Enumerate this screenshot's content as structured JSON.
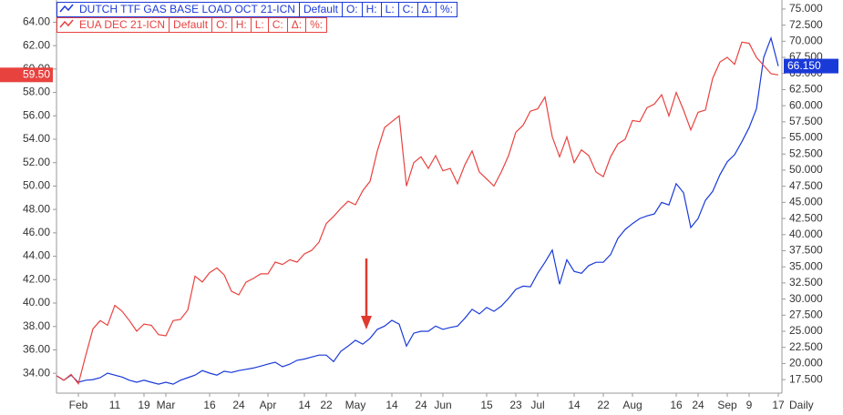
{
  "chart_data": {
    "type": "line",
    "categories": [
      null,
      null,
      null,
      "Feb",
      null,
      null,
      null,
      null,
      "11",
      null,
      null,
      null,
      "19",
      null,
      null,
      "Mar",
      null,
      null,
      null,
      null,
      null,
      "16",
      null,
      null,
      null,
      "24",
      null,
      null,
      null,
      "Apr",
      null,
      null,
      null,
      null,
      "14",
      null,
      null,
      "22",
      null,
      null,
      null,
      "May",
      null,
      null,
      null,
      null,
      "14",
      null,
      null,
      null,
      "24",
      null,
      null,
      "Jun",
      null,
      null,
      null,
      null,
      null,
      "15",
      null,
      null,
      null,
      "23",
      null,
      null,
      "Jul",
      null,
      null,
      null,
      null,
      "14",
      null,
      null,
      null,
      "22",
      null,
      null,
      null,
      "Aug",
      null,
      null,
      null,
      null,
      null,
      "16",
      null,
      null,
      "24",
      null,
      null,
      null,
      "Sep",
      null,
      null,
      "9",
      null,
      null,
      null,
      "17"
    ],
    "x_interval": "Daily",
    "legend_fields": [
      "Default",
      "O:",
      "H:",
      "L:",
      "C:",
      "Δ:",
      "%:"
    ],
    "series": [
      {
        "name": "DUTCH TTF GAS BASE LOAD OCT 21-ICN",
        "color": "#1a3ad8",
        "axis": "y2",
        "values": [
          18.1,
          17.4,
          18.2,
          17.1,
          17.4,
          17.5,
          17.8,
          18.5,
          18.2,
          17.9,
          17.4,
          17.1,
          17.4,
          17.1,
          16.8,
          17.1,
          16.8,
          17.4,
          17.8,
          18.2,
          18.9,
          18.5,
          18.2,
          18.8,
          18.6,
          18.9,
          19.1,
          19.3,
          19.6,
          19.9,
          20.2,
          19.5,
          19.9,
          20.5,
          20.7,
          21.0,
          21.3,
          21.3,
          20.3,
          21.9,
          22.7,
          23.6,
          23.0,
          23.9,
          25.3,
          25.8,
          26.7,
          26.1,
          22.7,
          24.7,
          25.0,
          25.0,
          25.8,
          25.3,
          25.6,
          25.8,
          27.0,
          28.4,
          27.7,
          28.7,
          28.1,
          28.9,
          30.1,
          31.5,
          32.0,
          31.9,
          34.0,
          35.7,
          37.6,
          32.3,
          36.1,
          34.3,
          34.0,
          35.2,
          35.7,
          35.7,
          36.9,
          39.4,
          40.8,
          41.7,
          42.5,
          42.9,
          43.2,
          45.0,
          44.6,
          47.9,
          46.5,
          41.1,
          42.5,
          45.3,
          46.7,
          49.3,
          51.3,
          52.4,
          54.4,
          56.6,
          59.5,
          67.5,
          70.5,
          66.15
        ],
        "last_value_label": "66.150"
      },
      {
        "name": "EUA DEC 21-ICN",
        "color": "#e8423f",
        "axis": "y",
        "values": [
          33.8,
          33.4,
          33.9,
          33.1,
          35.5,
          37.8,
          38.5,
          38.1,
          39.8,
          39.3,
          38.5,
          37.6,
          38.2,
          38.1,
          37.3,
          37.2,
          38.5,
          38.6,
          39.4,
          42.3,
          41.8,
          42.6,
          43.0,
          42.4,
          41.0,
          40.7,
          41.8,
          42.1,
          42.5,
          42.5,
          43.5,
          43.3,
          43.7,
          43.5,
          44.2,
          44.5,
          45.2,
          46.8,
          47.4,
          48.1,
          48.7,
          48.4,
          49.6,
          50.4,
          53.0,
          55.0,
          55.5,
          56.0,
          50.0,
          52.0,
          52.5,
          51.5,
          52.6,
          51.3,
          51.5,
          50.2,
          51.8,
          53.0,
          51.2,
          50.6,
          50.0,
          51.2,
          52.6,
          54.6,
          55.2,
          56.4,
          56.6,
          57.6,
          54.2,
          52.5,
          54.2,
          52.0,
          53.1,
          52.6,
          51.2,
          50.8,
          52.5,
          53.6,
          54.0,
          55.6,
          55.5,
          56.7,
          57.0,
          57.8,
          56.0,
          58.0,
          56.5,
          54.8,
          56.3,
          56.5,
          59.2,
          60.6,
          61.0,
          60.4,
          62.3,
          62.2,
          61.0,
          60.3,
          59.6,
          59.5
        ],
        "last_value_label": "59.50"
      }
    ],
    "ylim": [
      32.3,
      65.9
    ],
    "yticks": [
      {
        "value": 34,
        "label": "34.00"
      },
      {
        "value": 36,
        "label": "36.00"
      },
      {
        "value": 38,
        "label": "38.00"
      },
      {
        "value": 40,
        "label": "40.00"
      },
      {
        "value": 42,
        "label": "42.00"
      },
      {
        "value": 44,
        "label": "44.00"
      },
      {
        "value": 46,
        "label": "46.00"
      },
      {
        "value": 48,
        "label": "48.00"
      },
      {
        "value": 50,
        "label": "50.00"
      },
      {
        "value": 52,
        "label": "52.00"
      },
      {
        "value": 54,
        "label": "54.00"
      },
      {
        "value": 56,
        "label": "56.00"
      },
      {
        "value": 58,
        "label": "58.00"
      },
      {
        "value": 60,
        "label": "60.00"
      },
      {
        "value": 62,
        "label": "62.00"
      },
      {
        "value": 64,
        "label": "64.00"
      }
    ],
    "y2lim": [
      15.4,
      76.4
    ],
    "y2ticks": [
      {
        "value": 17.5,
        "label": "17.500"
      },
      {
        "value": 20,
        "label": "20.000"
      },
      {
        "value": 22.5,
        "label": "22.500"
      },
      {
        "value": 25,
        "label": "25.000"
      },
      {
        "value": 27.5,
        "label": "27.500"
      },
      {
        "value": 30,
        "label": "30.000"
      },
      {
        "value": 32.5,
        "label": "32.500"
      },
      {
        "value": 35,
        "label": "35.000"
      },
      {
        "value": 37.5,
        "label": "37.500"
      },
      {
        "value": 40,
        "label": "40.000"
      },
      {
        "value": 42.5,
        "label": "42.500"
      },
      {
        "value": 45,
        "label": "45.000"
      },
      {
        "value": 47.5,
        "label": "47.500"
      },
      {
        "value": 50,
        "label": "50.000"
      },
      {
        "value": 52.5,
        "label": "52.500"
      },
      {
        "value": 55,
        "label": "55.000"
      },
      {
        "value": 57.5,
        "label": "57.500"
      },
      {
        "value": 60,
        "label": "60.000"
      },
      {
        "value": 62.5,
        "label": "62.500"
      },
      {
        "value": 65,
        "label": "65.000"
      },
      {
        "value": 67.5,
        "label": "67.500"
      },
      {
        "value": 70,
        "label": "70.000"
      },
      {
        "value": 72.5,
        "label": "72.500"
      },
      {
        "value": 75,
        "label": "75.000"
      }
    ],
    "grid": false
  }
}
